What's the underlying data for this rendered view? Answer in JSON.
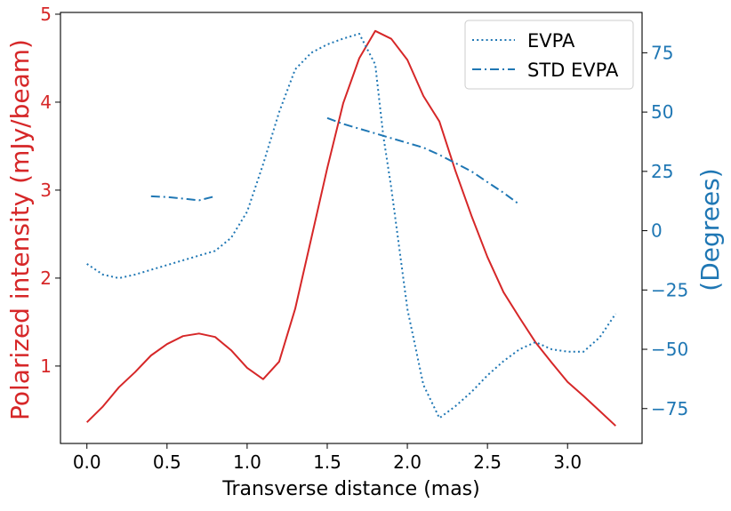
{
  "chart_data": {
    "type": "line",
    "title": "",
    "xlabel": "Transverse distance (mas)",
    "ylabel_left": "Polarized intensity (mJy/beam)",
    "ylabel_right": "(Degrees)",
    "xlim": [
      -0.165,
      3.465
    ],
    "ylim_left": [
      0.12,
      5.02
    ],
    "ylim_right": [
      -89.7,
      92.0
    ],
    "x_ticks": [
      0.0,
      0.5,
      1.0,
      1.5,
      2.0,
      2.5,
      3.0
    ],
    "x_tick_labels": [
      "0.0",
      "0.5",
      "1.0",
      "1.5",
      "2.0",
      "2.5",
      "3.0"
    ],
    "y_left_ticks": [
      1,
      2,
      3,
      4,
      5
    ],
    "y_left_tick_labels": [
      "1",
      "2",
      "3",
      "4",
      "5"
    ],
    "y_right_ticks": [
      -75,
      -50,
      -25,
      0,
      25,
      50,
      75
    ],
    "y_right_tick_labels": [
      "−75",
      "−50",
      "−25",
      "0",
      "25",
      "50",
      "75"
    ],
    "grid": false,
    "legend_position": "top-right",
    "colors": {
      "polarized_intensity": "#d62728",
      "evpa": "#1f77b4",
      "left_axis_text": "#d62728",
      "right_axis_text": "#1f77b4"
    },
    "series": [
      {
        "name": "",
        "axis": "left",
        "style": "solid",
        "x": [
          0.0,
          0.1,
          0.2,
          0.3,
          0.4,
          0.5,
          0.6,
          0.7,
          0.8,
          0.9,
          1.0,
          1.1,
          1.2,
          1.3,
          1.4,
          1.5,
          1.6,
          1.7,
          1.8,
          1.9,
          2.0,
          2.1,
          2.2,
          2.3,
          2.4,
          2.5,
          2.6,
          2.7,
          2.8,
          2.9,
          3.0,
          3.1,
          3.2,
          3.3
        ],
        "y": [
          0.36,
          0.54,
          0.76,
          0.93,
          1.12,
          1.25,
          1.34,
          1.37,
          1.33,
          1.18,
          0.98,
          0.85,
          1.05,
          1.65,
          2.45,
          3.25,
          3.99,
          4.5,
          4.81,
          4.72,
          4.48,
          4.07,
          3.78,
          3.22,
          2.71,
          2.24,
          1.84,
          1.55,
          1.27,
          1.04,
          0.82,
          0.66,
          0.49,
          0.32
        ]
      },
      {
        "name": "EVPA",
        "axis": "right",
        "style": "dotted",
        "x": [
          0.0,
          0.1,
          0.2,
          0.3,
          0.4,
          0.5,
          0.6,
          0.7,
          0.8,
          0.9,
          1.0,
          1.1,
          1.2,
          1.3,
          1.4,
          1.5,
          1.6,
          1.7,
          1.8,
          1.85,
          1.9,
          2.0,
          2.1,
          2.2,
          2.3,
          2.4,
          2.5,
          2.6,
          2.7,
          2.8,
          2.9,
          3.0,
          3.1,
          3.2,
          3.3
        ],
        "y": [
          -14,
          -18.5,
          -20,
          -18.5,
          -16.5,
          -14.5,
          -12.5,
          -10.5,
          -8.5,
          -3,
          8,
          28,
          50,
          68,
          75,
          78.5,
          81,
          83,
          70,
          40,
          18,
          -33,
          -65,
          -79,
          -74,
          -68,
          -61,
          -55,
          -50,
          -47,
          -50,
          -51,
          -51,
          -45,
          -35
        ]
      },
      {
        "name": "STD EVPA",
        "axis": "right",
        "style": "dashdot",
        "segments": [
          {
            "x": [
              0.4,
              0.5,
              0.6,
              0.7,
              0.8
            ],
            "y": [
              14.5,
              14.2,
              13.5,
              12.8,
              14.5
            ]
          },
          {
            "x": [
              1.5,
              1.6,
              1.7,
              1.8,
              1.9,
              2.0,
              2.1,
              2.2,
              2.3,
              2.4,
              2.5,
              2.6,
              2.7
            ],
            "y": [
              47.5,
              45,
              43,
              41,
              39,
              37,
              35,
              32,
              28.5,
              25,
              20.5,
              16,
              11
            ]
          }
        ]
      }
    ]
  }
}
